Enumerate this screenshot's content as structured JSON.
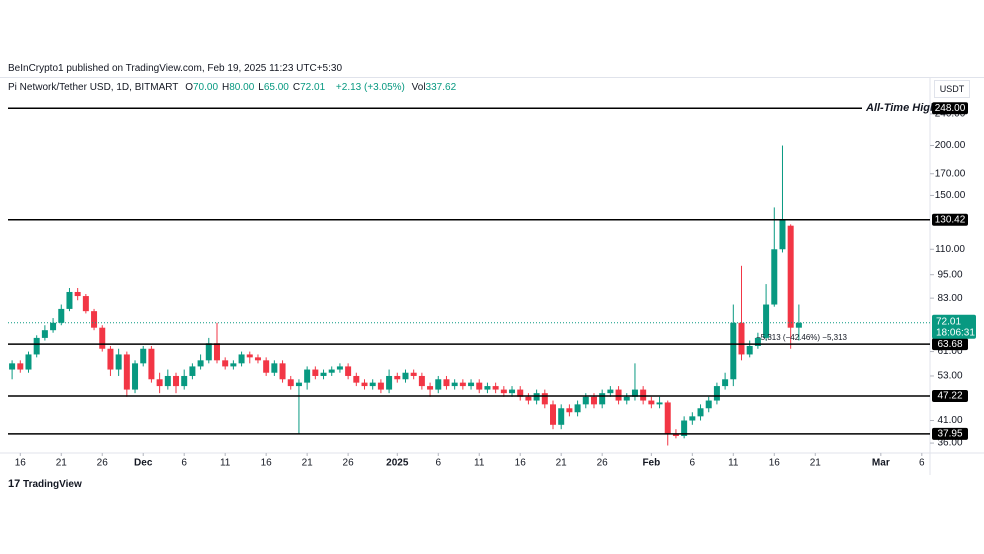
{
  "header": {
    "published": "BeInCrypto1 published on TradingView.com, Feb 19, 2025 11:23 UTC+5:30",
    "symbol": "Pi Network/Tether USD, 1D, BITMART",
    "ohlc": [
      {
        "key": "O",
        "value": "70.00"
      },
      {
        "key": "H",
        "value": "80.00"
      },
      {
        "key": "L",
        "value": "65.00"
      },
      {
        "key": "C",
        "value": "72.01"
      }
    ],
    "change": "+2.13 (+3.05%)",
    "volume_key": "Vol",
    "volume": "337.62",
    "currency": "USDT"
  },
  "footer": {
    "brand": "TradingView"
  },
  "chart_data": {
    "type": "candlestick",
    "log_scale": true,
    "up_color": "#089981",
    "down_color": "#f23645",
    "ylim": [
      34,
      260
    ],
    "xlim": [
      -0.5,
      112
    ],
    "yticks": [
      {
        "value": 36,
        "label": "36.00"
      },
      {
        "value": 41,
        "label": "41.00"
      },
      {
        "value": 53,
        "label": "53.00"
      },
      {
        "value": 61,
        "label": "61.00"
      },
      {
        "value": 83,
        "label": "83.00"
      },
      {
        "value": 95,
        "label": "95.00"
      },
      {
        "value": 110,
        "label": "110.00"
      },
      {
        "value": 150,
        "label": "150.00"
      },
      {
        "value": 170,
        "label": "170.00"
      },
      {
        "value": 200,
        "label": "200.00"
      },
      {
        "value": 240,
        "label": "240.00"
      }
    ],
    "xticks": [
      {
        "value": 1,
        "label": "16"
      },
      {
        "value": 6,
        "label": "21"
      },
      {
        "value": 11,
        "label": "26"
      },
      {
        "value": 16,
        "label": "Dec"
      },
      {
        "value": 21,
        "label": "6"
      },
      {
        "value": 26,
        "label": "11"
      },
      {
        "value": 31,
        "label": "16"
      },
      {
        "value": 36,
        "label": "21"
      },
      {
        "value": 41,
        "label": "26"
      },
      {
        "value": 47,
        "label": "2025"
      },
      {
        "value": 52,
        "label": "6"
      },
      {
        "value": 57,
        "label": "11"
      },
      {
        "value": 62,
        "label": "16"
      },
      {
        "value": 67,
        "label": "21"
      },
      {
        "value": 72,
        "label": "26"
      },
      {
        "value": 78,
        "label": "Feb"
      },
      {
        "value": 83,
        "label": "6"
      },
      {
        "value": 88,
        "label": "11"
      },
      {
        "value": 93,
        "label": "16"
      },
      {
        "value": 98,
        "label": "21"
      },
      {
        "value": 106,
        "label": "Mar"
      },
      {
        "value": 111,
        "label": "6"
      }
    ],
    "open": [
      55,
      57,
      55,
      60,
      66,
      69,
      72,
      78,
      86,
      84,
      77,
      70,
      62,
      55,
      60,
      49,
      57,
      62,
      52,
      50,
      53,
      50,
      53,
      56,
      58,
      64,
      58,
      56,
      57,
      60,
      59,
      58,
      54,
      57,
      52,
      50,
      51,
      55,
      53,
      54,
      55,
      56,
      53,
      51,
      50,
      51,
      49,
      53,
      52,
      54,
      53,
      50,
      49,
      52,
      50,
      51,
      50,
      51,
      49,
      50,
      49,
      48,
      49,
      47,
      46,
      48,
      45,
      40,
      44,
      43,
      45,
      47,
      45,
      48,
      49,
      46,
      47,
      49,
      46,
      45,
      45.5,
      38,
      37.5,
      41,
      42,
      44,
      46,
      50,
      52,
      72,
      60,
      63,
      66,
      80,
      110,
      126,
      70
    ],
    "high": [
      58,
      58,
      61,
      67,
      71,
      74,
      80,
      88,
      88,
      85,
      78,
      71,
      63,
      62,
      61,
      58,
      63,
      63,
      54,
      55,
      54,
      55,
      57,
      60,
      66,
      72,
      59,
      58,
      61,
      61,
      60,
      59,
      58,
      58,
      53,
      52,
      56,
      56,
      55,
      56,
      57,
      57,
      54,
      52,
      52,
      52,
      55,
      54,
      55,
      55,
      54,
      51,
      53,
      53,
      52,
      52,
      52,
      52,
      51,
      51,
      50,
      50,
      50,
      48,
      49,
      49,
      46,
      45,
      45,
      46,
      48,
      48,
      49,
      50,
      50,
      48,
      57,
      50,
      47,
      47,
      46,
      39,
      42,
      43,
      45,
      47,
      51,
      54,
      80,
      100,
      65,
      68,
      90,
      140,
      200,
      127,
      80
    ],
    "low": [
      52,
      54,
      54,
      59,
      65,
      68,
      71,
      77,
      82,
      76,
      69,
      61,
      53,
      53,
      47,
      48,
      56,
      51,
      48,
      49,
      48,
      49,
      52,
      55,
      57,
      57,
      55,
      55,
      56,
      57,
      57,
      53,
      53,
      51,
      49,
      38,
      49,
      52,
      52,
      53,
      54,
      52,
      50,
      49,
      49,
      48,
      48,
      51,
      51,
      52,
      49,
      47,
      48,
      49,
      49,
      49,
      49,
      48,
      48,
      48,
      47,
      47,
      46,
      45,
      45,
      44,
      39,
      39,
      42,
      42,
      44,
      44,
      44,
      47,
      45,
      45,
      46,
      45,
      44,
      44,
      35.5,
      37,
      37,
      40,
      41,
      43,
      45,
      49,
      50,
      58,
      59,
      62,
      65,
      79,
      108,
      62,
      65
    ],
    "close": [
      57,
      55,
      60,
      66,
      69,
      72,
      78,
      86,
      84,
      77,
      70,
      62,
      55,
      60,
      49,
      57,
      62,
      52,
      50,
      53,
      50,
      53,
      56,
      58,
      64,
      58,
      56,
      57,
      60,
      59,
      58,
      54,
      57,
      52,
      50,
      51,
      55,
      53,
      54,
      55,
      56,
      53,
      51,
      50,
      51,
      49,
      53,
      52,
      54,
      53,
      50,
      49,
      52,
      50,
      51,
      50,
      51,
      49,
      50,
      49,
      48,
      49,
      47,
      46,
      48,
      45,
      40,
      44,
      43,
      45,
      47,
      45,
      48,
      49,
      46,
      47,
      49,
      46,
      45,
      45.5,
      38,
      37.5,
      41,
      42,
      44,
      46,
      50,
      52,
      72,
      60,
      63,
      66,
      80,
      110,
      130,
      70,
      72.01
    ],
    "levels": [
      {
        "value": 248,
        "label": "248.00"
      },
      {
        "value": 130.42,
        "label": "130.42"
      },
      {
        "value": 63.68,
        "label": "63.68"
      },
      {
        "value": 47.22,
        "label": "47.22"
      },
      {
        "value": 37.95,
        "label": "37.95"
      }
    ],
    "ath_label": "All-Time High -",
    "last_price": {
      "value": 72.01,
      "label": "72.01"
    },
    "countdown": "18:06:31",
    "measure_text": "−5,313 (−42.46%) −5,313"
  }
}
